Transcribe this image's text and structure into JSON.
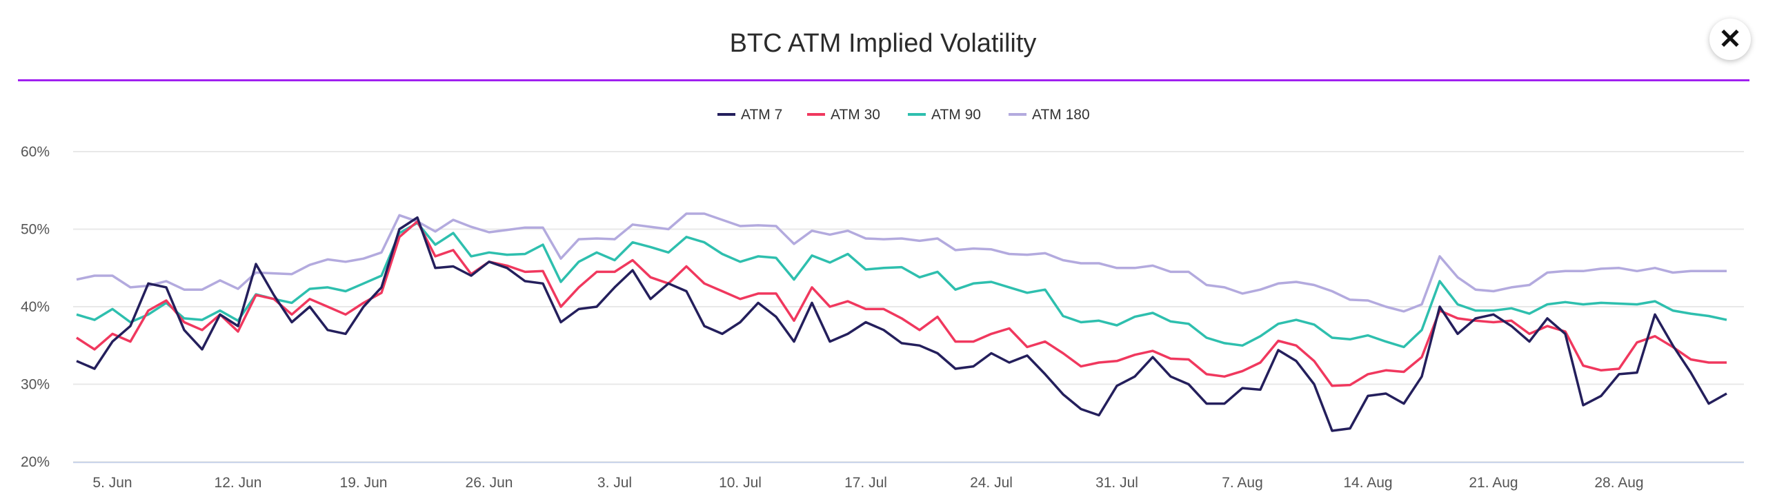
{
  "header": {
    "title": "BTC ATM Implied Volatility",
    "close_icon": "close-icon"
  },
  "chart_data": {
    "type": "line",
    "title": "BTC ATM Implied Volatility",
    "xlabel": "",
    "ylabel": "",
    "ylim": [
      20,
      60
    ],
    "yticks": [
      "20%",
      "30%",
      "40%",
      "50%",
      "60%"
    ],
    "ytick_values": [
      20,
      30,
      40,
      50,
      60
    ],
    "x_start": "3 Jun",
    "x_step": "1 day",
    "xticks": [
      {
        "label": "5. Jun",
        "day": 2
      },
      {
        "label": "12. Jun",
        "day": 9
      },
      {
        "label": "19. Jun",
        "day": 16
      },
      {
        "label": "26. Jun",
        "day": 23
      },
      {
        "label": "3. Jul",
        "day": 30
      },
      {
        "label": "10. Jul",
        "day": 37
      },
      {
        "label": "17. Jul",
        "day": 44
      },
      {
        "label": "24. Jul",
        "day": 51
      },
      {
        "label": "31. Jul",
        "day": 58
      },
      {
        "label": "7. Aug",
        "day": 65
      },
      {
        "label": "14. Aug",
        "day": 72
      },
      {
        "label": "21. Aug",
        "day": 79
      },
      {
        "label": "28. Aug",
        "day": 86
      }
    ],
    "grid": true,
    "legend_position": "top-center",
    "series": [
      {
        "name": "ATM 7",
        "color": "#241f5c",
        "values": [
          33,
          32,
          35.5,
          37.5,
          43,
          42.5,
          37,
          34.5,
          39,
          37.5,
          45.5,
          41.5,
          38,
          40,
          37,
          36.5,
          40,
          42.5,
          50,
          51.5,
          45,
          45.2,
          44,
          45.8,
          45,
          43.3,
          43,
          38,
          39.7,
          40,
          42.5,
          44.7,
          41,
          43,
          42,
          37.5,
          36.5,
          38,
          40.5,
          38.7,
          35.5,
          40.5,
          35.5,
          36.5,
          38,
          37,
          35.3,
          35,
          34,
          32,
          32.3,
          34,
          32.8,
          33.7,
          31.3,
          28.7,
          26.8,
          26,
          29.8,
          31,
          33.5,
          31,
          30,
          27.5,
          27.5,
          29.5,
          29.3,
          34.4,
          33,
          30,
          24,
          24.3,
          28.5,
          28.8,
          27.5,
          31,
          40,
          36.5,
          38.5,
          39,
          37.5,
          35.5,
          38.5,
          36.5,
          27.3,
          28.5,
          31.3,
          31.5,
          39,
          35,
          31.5,
          27.5,
          28.8
        ]
      },
      {
        "name": "ATM 30",
        "color": "#f0385e",
        "values": [
          36,
          34.5,
          36.5,
          35.5,
          39.5,
          40.8,
          38,
          37,
          39,
          36.8,
          41.5,
          41,
          39,
          41,
          40,
          39,
          40.5,
          41.8,
          49,
          51,
          46.5,
          47.3,
          44.2,
          45.8,
          45.3,
          44.5,
          44.6,
          40,
          42.5,
          44.5,
          44.5,
          46,
          43.8,
          43,
          45.2,
          43,
          42,
          41,
          41.7,
          41.7,
          38.2,
          42.5,
          40,
          40.7,
          39.7,
          39.7,
          38.5,
          37,
          38.7,
          35.5,
          35.5,
          36.5,
          37.2,
          34.8,
          35.5,
          34,
          32.3,
          32.8,
          33,
          33.8,
          34.3,
          33.3,
          33.2,
          31.3,
          31,
          31.7,
          32.8,
          35.6,
          35,
          33,
          29.8,
          29.9,
          31.3,
          31.8,
          31.6,
          33.5,
          39.5,
          38.5,
          38.2,
          38,
          38.2,
          36.5,
          37.5,
          36.8,
          32.4,
          31.8,
          32,
          35.4,
          36.2,
          34.8,
          33.2,
          32.8,
          32.8
        ]
      },
      {
        "name": "ATM 90",
        "color": "#2ebfae",
        "values": [
          39,
          38.3,
          39.7,
          38,
          39,
          40.5,
          38.5,
          38.3,
          39.5,
          38.2,
          41.6,
          41,
          40.5,
          42.3,
          42.5,
          42,
          43,
          44,
          49.5,
          50.8,
          48,
          49.5,
          46.5,
          47,
          46.7,
          46.8,
          48,
          43.2,
          45.8,
          47,
          46,
          48.3,
          47.7,
          47,
          49,
          48.3,
          46.8,
          45.8,
          46.5,
          46.3,
          43.5,
          46.6,
          45.7,
          46.8,
          44.8,
          45,
          45.1,
          43.8,
          44.5,
          42.2,
          43,
          43.2,
          42.5,
          41.8,
          42.2,
          38.8,
          38,
          38.2,
          37.6,
          38.7,
          39.2,
          38.1,
          37.8,
          36,
          35.3,
          35,
          36.2,
          37.8,
          38.3,
          37.7,
          36,
          35.8,
          36.3,
          35.5,
          34.8,
          37,
          43.3,
          40.3,
          39.5,
          39.5,
          39.8,
          39.1,
          40.3,
          40.6,
          40.3,
          40.5,
          40.4,
          40.3,
          40.7,
          39.5,
          39.1,
          38.8,
          38.3
        ]
      },
      {
        "name": "ATM 180",
        "color": "#b3aade",
        "values": [
          43.5,
          44,
          44,
          42.5,
          42.7,
          43.3,
          42.2,
          42.2,
          43.4,
          42.3,
          44.4,
          44.3,
          44.2,
          45.4,
          46.1,
          45.8,
          46.2,
          47,
          51.8,
          51,
          49.7,
          51.2,
          50.3,
          49.6,
          49.9,
          50.2,
          50.2,
          46.2,
          48.7,
          48.8,
          48.7,
          50.6,
          50.3,
          50,
          52,
          52,
          51.2,
          50.4,
          50.5,
          50.4,
          48.1,
          49.8,
          49.3,
          49.8,
          48.8,
          48.7,
          48.8,
          48.5,
          48.8,
          47.3,
          47.5,
          47.4,
          46.8,
          46.7,
          46.9,
          46,
          45.6,
          45.6,
          45,
          45,
          45.3,
          44.5,
          44.5,
          42.8,
          42.5,
          41.7,
          42.2,
          43,
          43.2,
          42.8,
          42,
          40.9,
          40.8,
          40,
          39.4,
          40.3,
          46.5,
          43.8,
          42.2,
          42,
          42.5,
          42.8,
          44.4,
          44.6,
          44.6,
          44.9,
          45,
          44.6,
          45,
          44.4,
          44.6,
          44.6,
          44.6
        ]
      }
    ]
  }
}
